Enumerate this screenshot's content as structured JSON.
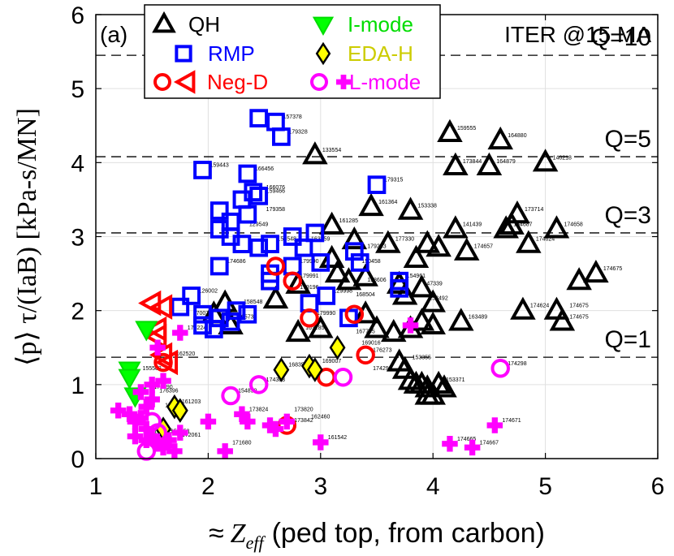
{
  "chart_data": {
    "type": "scatter",
    "panel_label": "(a)",
    "xlabel_prefix": "≈",
    "xlabel_var": "Z",
    "xlabel_sub": "eff",
    "xlabel_rest": "(ped top, from carbon)",
    "ylabel": "⟨p⟩ τ/(IaB) [kPa-s/MN]",
    "xlim": [
      1,
      6
    ],
    "ylim": [
      0,
      6
    ],
    "xticks": [
      "1",
      "2",
      "3",
      "4",
      "5",
      "6"
    ],
    "yticks": [
      "0",
      "1",
      "2",
      "3",
      "4",
      "5",
      "6"
    ],
    "grid": true,
    "legend_position": "top",
    "annotation": "ITER @15 MA",
    "reference_lines": [
      {
        "label": "Q=10",
        "y": 5.45
      },
      {
        "label": "Q=5",
        "y": 4.08
      },
      {
        "label": "Q=3",
        "y": 3.05
      },
      {
        "label": "Q=1",
        "y": 1.37
      }
    ],
    "series": [
      {
        "name": "QH",
        "marker": "triangle-up",
        "color": "#000000",
        "fill": "none",
        "points": [
          [
            2.95,
            4.1
          ],
          [
            4.15,
            4.4
          ],
          [
            4.6,
            4.3
          ],
          [
            4.2,
            3.95
          ],
          [
            4.5,
            3.95
          ],
          [
            5.0,
            4.0
          ],
          [
            3.45,
            3.4
          ],
          [
            3.8,
            3.35
          ],
          [
            4.2,
            3.1
          ],
          [
            4.65,
            3.1
          ],
          [
            4.75,
            3.3
          ],
          [
            4.7,
            3.15
          ],
          [
            5.1,
            3.1
          ],
          [
            3.1,
            3.15
          ],
          [
            3.3,
            2.95
          ],
          [
            3.6,
            2.9
          ],
          [
            3.95,
            2.9
          ],
          [
            4.05,
            2.85
          ],
          [
            4.3,
            2.8
          ],
          [
            4.85,
            2.9
          ],
          [
            3.85,
            2.7
          ],
          [
            3.1,
            2.7
          ],
          [
            3.15,
            2.5
          ],
          [
            3.4,
            2.45
          ],
          [
            3.25,
            2.4
          ],
          [
            3.7,
            2.35
          ],
          [
            3.75,
            2.2
          ],
          [
            3.9,
            2.3
          ],
          [
            4.0,
            2.1
          ],
          [
            5.3,
            2.4
          ],
          [
            5.45,
            2.5
          ],
          [
            4.8,
            2.0
          ],
          [
            5.1,
            2.0
          ],
          [
            5.15,
            1.85
          ],
          [
            3.0,
            1.75
          ],
          [
            2.8,
            1.7
          ],
          [
            3.4,
            1.95
          ],
          [
            3.5,
            1.75
          ],
          [
            3.65,
            1.7
          ],
          [
            3.8,
            1.75
          ],
          [
            3.9,
            1.85
          ],
          [
            4.0,
            1.8
          ],
          [
            4.25,
            1.85
          ],
          [
            3.7,
            1.3
          ],
          [
            3.75,
            1.2
          ],
          [
            3.8,
            1.05
          ],
          [
            3.85,
            1.0
          ],
          [
            3.9,
            1.0
          ],
          [
            3.95,
            0.95
          ],
          [
            4.05,
            1.0
          ],
          [
            4.1,
            0.95
          ],
          [
            3.95,
            0.85
          ],
          [
            4.0,
            0.85
          ],
          [
            2.15,
            2.1
          ],
          [
            2.2,
            1.8
          ],
          [
            2.05,
            1.95
          ],
          [
            2.6,
            2.15
          ],
          [
            2.8,
            2.35
          ]
        ]
      },
      {
        "name": "RMP",
        "marker": "square",
        "color": "#0000ff",
        "fill": "none",
        "points": [
          [
            2.45,
            4.6
          ],
          [
            2.6,
            4.55
          ],
          [
            2.65,
            4.35
          ],
          [
            1.95,
            3.9
          ],
          [
            2.35,
            3.85
          ],
          [
            2.4,
            3.6
          ],
          [
            2.3,
            3.5
          ],
          [
            2.45,
            3.55
          ],
          [
            2.35,
            3.3
          ],
          [
            2.1,
            3.35
          ],
          [
            2.2,
            3.2
          ],
          [
            2.1,
            3.1
          ],
          [
            2.2,
            3.0
          ],
          [
            2.3,
            2.9
          ],
          [
            2.45,
            2.85
          ],
          [
            2.55,
            2.9
          ],
          [
            2.75,
            3.0
          ],
          [
            2.85,
            2.85
          ],
          [
            2.95,
            3.05
          ],
          [
            3.5,
            3.7
          ],
          [
            2.1,
            2.6
          ],
          [
            2.55,
            2.5
          ],
          [
            2.55,
            2.4
          ],
          [
            2.75,
            2.6
          ],
          [
            3.0,
            2.65
          ],
          [
            3.3,
            2.8
          ],
          [
            3.35,
            2.65
          ],
          [
            3.7,
            2.4
          ],
          [
            3.7,
            2.3
          ],
          [
            1.85,
            2.2
          ],
          [
            1.75,
            2.05
          ],
          [
            1.95,
            1.95
          ],
          [
            2.1,
            1.9
          ],
          [
            2.25,
            2.0
          ],
          [
            2.35,
            1.95
          ],
          [
            1.95,
            1.8
          ],
          [
            2.05,
            1.75
          ],
          [
            2.2,
            1.85
          ],
          [
            2.9,
            2.1
          ],
          [
            3.05,
            2.2
          ],
          [
            3.25,
            1.9
          ]
        ]
      },
      {
        "name": "Neg-D",
        "marker": "circle",
        "color": "#ff0000",
        "fill": "none",
        "points": [
          [
            2.6,
            2.6
          ],
          [
            2.75,
            2.4
          ],
          [
            2.9,
            1.9
          ],
          [
            3.3,
            1.95
          ],
          [
            3.4,
            1.4
          ],
          [
            3.05,
            1.1
          ],
          [
            1.6,
            1.3
          ],
          [
            2.7,
            0.45
          ]
        ]
      },
      {
        "name": "Neg-D",
        "marker": "triangle-left",
        "color": "#ff0000",
        "fill": "none",
        "points": [
          [
            1.5,
            2.1
          ],
          [
            1.6,
            2.05
          ],
          [
            1.55,
            1.75
          ],
          [
            1.6,
            1.4
          ],
          [
            1.55,
            1.65
          ],
          [
            1.65,
            1.3
          ]
        ]
      },
      {
        "name": "I-mode",
        "marker": "triangle-down",
        "color": "#00ff00",
        "fill": "#00ff00",
        "points": [
          [
            1.45,
            1.75
          ],
          [
            1.3,
            1.2
          ],
          [
            1.3,
            1.1
          ],
          [
            1.35,
            0.85
          ]
        ]
      },
      {
        "name": "EDA-H",
        "marker": "diamond",
        "color": "#000000",
        "fill": "#ffff00",
        "points": [
          [
            2.65,
            1.2
          ],
          [
            2.9,
            1.25
          ],
          [
            2.95,
            1.2
          ],
          [
            3.15,
            1.5
          ],
          [
            1.6,
            0.4
          ],
          [
            1.7,
            0.7
          ],
          [
            1.75,
            0.65
          ]
        ]
      },
      {
        "name": "L-mode",
        "marker": "circle",
        "color": "#ff00ff",
        "fill": "none",
        "points": [
          [
            2.2,
            0.85
          ],
          [
            2.45,
            1.0
          ],
          [
            3.2,
            1.1
          ],
          [
            4.6,
            1.22
          ],
          [
            1.45,
            0.1
          ],
          [
            1.5,
            0.5
          ],
          [
            1.55,
            0.35
          ]
        ]
      },
      {
        "name": "L-mode",
        "marker": "plus",
        "color": "#ff00ff",
        "fill": "#ff00ff",
        "points": [
          [
            1.2,
            0.65
          ],
          [
            1.3,
            0.6
          ],
          [
            1.35,
            0.5
          ],
          [
            1.4,
            0.55
          ],
          [
            1.45,
            0.4
          ],
          [
            1.5,
            0.3
          ],
          [
            1.55,
            0.2
          ],
          [
            1.6,
            0.15
          ],
          [
            1.65,
            0.25
          ],
          [
            1.7,
            0.1
          ],
          [
            1.75,
            0.35
          ],
          [
            1.4,
            0.9
          ],
          [
            1.5,
            0.8
          ],
          [
            1.45,
            0.7
          ],
          [
            1.75,
            1.7
          ],
          [
            1.55,
            1.5
          ],
          [
            1.6,
            1.05
          ],
          [
            1.5,
            1.0
          ],
          [
            1.45,
            0.25
          ],
          [
            1.35,
            0.3
          ],
          [
            2.0,
            0.5
          ],
          [
            2.15,
            0.1
          ],
          [
            2.3,
            0.6
          ],
          [
            2.35,
            0.5
          ],
          [
            2.55,
            0.45
          ],
          [
            3.0,
            0.22
          ],
          [
            4.15,
            0.2
          ],
          [
            4.35,
            0.15
          ],
          [
            4.55,
            0.45
          ],
          [
            3.8,
            1.8
          ],
          [
            2.7,
            0.5
          ],
          [
            2.6,
            0.4
          ]
        ]
      }
    ],
    "point_labels": [
      {
        "x": 2.95,
        "y": 4.1,
        "text": "133554"
      },
      {
        "x": 4.15,
        "y": 4.4,
        "text": "159555"
      },
      {
        "x": 4.6,
        "y": 4.3,
        "text": "164880"
      },
      {
        "x": 4.2,
        "y": 3.95,
        "text": "173844"
      },
      {
        "x": 4.5,
        "y": 3.95,
        "text": "164879"
      },
      {
        "x": 5.0,
        "y": 4.0,
        "text": "140218"
      },
      {
        "x": 3.45,
        "y": 3.4,
        "text": "161364"
      },
      {
        "x": 3.8,
        "y": 3.35,
        "text": "153338"
      },
      {
        "x": 4.2,
        "y": 3.1,
        "text": "141439"
      },
      {
        "x": 4.75,
        "y": 3.3,
        "text": "173714"
      },
      {
        "x": 4.65,
        "y": 3.1,
        "text": "164687"
      },
      {
        "x": 5.1,
        "y": 3.1,
        "text": "174658"
      },
      {
        "x": 3.1,
        "y": 3.15,
        "text": "161285"
      },
      {
        "x": 3.6,
        "y": 2.9,
        "text": "177330"
      },
      {
        "x": 4.3,
        "y": 2.8,
        "text": "174657"
      },
      {
        "x": 4.85,
        "y": 2.9,
        "text": "174624"
      },
      {
        "x": 5.45,
        "y": 2.5,
        "text": "174675"
      },
      {
        "x": 4.8,
        "y": 2.0,
        "text": "174624"
      },
      {
        "x": 5.15,
        "y": 2.0,
        "text": "174675"
      },
      {
        "x": 5.15,
        "y": 1.85,
        "text": "174675"
      },
      {
        "x": 4.25,
        "y": 1.85,
        "text": "163489"
      },
      {
        "x": 3.9,
        "y": 2.1,
        "text": "153492"
      },
      {
        "x": 3.85,
        "y": 2.3,
        "text": "147339"
      },
      {
        "x": 3.75,
        "y": 1.3,
        "text": "153355"
      },
      {
        "x": 4.05,
        "y": 1.0,
        "text": "153371"
      },
      {
        "x": 2.8,
        "y": 1.7,
        "text": "161285"
      },
      {
        "x": 2.6,
        "y": 4.55,
        "text": "157378"
      },
      {
        "x": 2.65,
        "y": 4.35,
        "text": "179328"
      },
      {
        "x": 2.35,
        "y": 3.85,
        "text": "166456"
      },
      {
        "x": 1.95,
        "y": 3.9,
        "text": "159443"
      },
      {
        "x": 2.45,
        "y": 3.55,
        "text": "159466"
      },
      {
        "x": 2.45,
        "y": 3.6,
        "text": "166076"
      },
      {
        "x": 2.45,
        "y": 3.3,
        "text": "179358"
      },
      {
        "x": 3.5,
        "y": 3.7,
        "text": "179315"
      },
      {
        "x": 2.3,
        "y": 3.1,
        "text": "129549"
      },
      {
        "x": 2.55,
        "y": 2.9,
        "text": "156548"
      },
      {
        "x": 2.85,
        "y": 2.9,
        "text": "163359"
      },
      {
        "x": 3.35,
        "y": 2.8,
        "text": "179233"
      },
      {
        "x": 2.1,
        "y": 2.6,
        "text": "174686"
      },
      {
        "x": 2.75,
        "y": 2.6,
        "text": "179990"
      },
      {
        "x": 3.3,
        "y": 2.6,
        "text": "150458"
      },
      {
        "x": 3.7,
        "y": 2.4,
        "text": "154961"
      },
      {
        "x": 3.35,
        "y": 2.35,
        "text": "158606"
      },
      {
        "x": 2.75,
        "y": 2.4,
        "text": "179991"
      },
      {
        "x": 2.75,
        "y": 2.25,
        "text": "179196"
      },
      {
        "x": 3.05,
        "y": 2.2,
        "text": "129998"
      },
      {
        "x": 3.25,
        "y": 2.15,
        "text": "168504"
      },
      {
        "x": 1.85,
        "y": 2.2,
        "text": "126002"
      },
      {
        "x": 2.25,
        "y": 2.05,
        "text": "158548"
      },
      {
        "x": 2.2,
        "y": 1.85,
        "text": "165736"
      },
      {
        "x": 2.9,
        "y": 1.9,
        "text": "179990"
      },
      {
        "x": 3.3,
        "y": 1.5,
        "text": "169016"
      },
      {
        "x": 3.25,
        "y": 1.65,
        "text": "167795"
      },
      {
        "x": 3.4,
        "y": 1.4,
        "text": "176273"
      },
      {
        "x": 3.4,
        "y": 1.15,
        "text": "174299"
      },
      {
        "x": 2.95,
        "y": 1.25,
        "text": "169007"
      },
      {
        "x": 2.65,
        "y": 1.2,
        "text": "168350"
      },
      {
        "x": 2.45,
        "y": 1.0,
        "text": "174303"
      },
      {
        "x": 2.2,
        "y": 0.85,
        "text": "154890"
      },
      {
        "x": 4.6,
        "y": 1.22,
        "text": "174298"
      },
      {
        "x": 2.7,
        "y": 0.6,
        "text": "173820"
      },
      {
        "x": 2.3,
        "y": 0.6,
        "text": "173824"
      },
      {
        "x": 2.85,
        "y": 0.5,
        "text": "162460"
      },
      {
        "x": 2.7,
        "y": 0.45,
        "text": "173842"
      },
      {
        "x": 3.0,
        "y": 0.22,
        "text": "161542"
      },
      {
        "x": 2.15,
        "y": 0.15,
        "text": "171680"
      },
      {
        "x": 4.55,
        "y": 0.45,
        "text": "174671"
      },
      {
        "x": 4.15,
        "y": 0.2,
        "text": "174665"
      },
      {
        "x": 4.35,
        "y": 0.15,
        "text": "174667"
      },
      {
        "x": 1.45,
        "y": 0.9,
        "text": "176390"
      },
      {
        "x": 1.5,
        "y": 0.85,
        "text": "176396"
      },
      {
        "x": 1.55,
        "y": 0.65,
        "text": "155529"
      },
      {
        "x": 1.7,
        "y": 0.7,
        "text": "161203"
      },
      {
        "x": 1.6,
        "y": 0.3,
        "text": "158958"
      },
      {
        "x": 1.45,
        "y": 0.3,
        "text": "156585"
      },
      {
        "x": 1.7,
        "y": 0.25,
        "text": "172061"
      },
      {
        "x": 1.65,
        "y": 1.35,
        "text": "162520"
      },
      {
        "x": 1.35,
        "y": 1.15,
        "text": "155503"
      },
      {
        "x": 1.75,
        "y": 1.7,
        "text": "174224"
      },
      {
        "x": 1.8,
        "y": 1.9,
        "text": "170078"
      }
    ]
  }
}
